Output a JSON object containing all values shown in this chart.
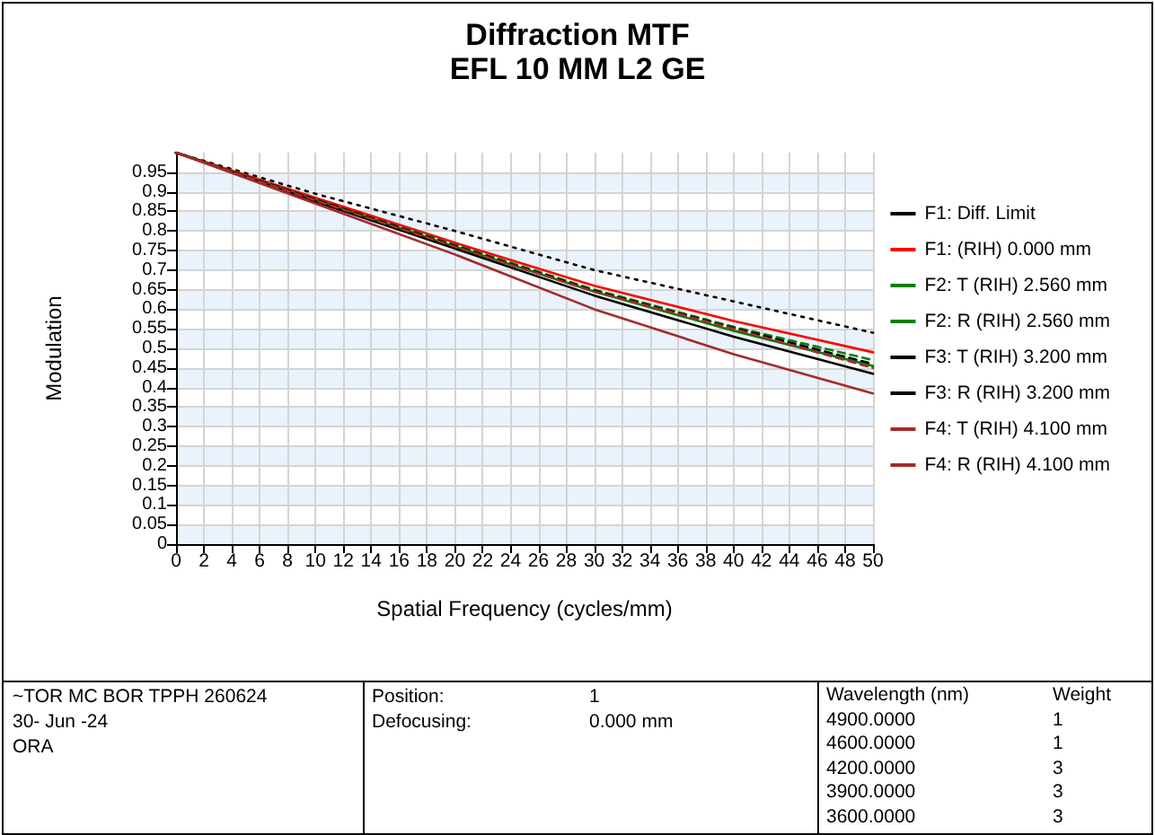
{
  "chart_data": {
    "type": "line",
    "title": "Diffraction MTF",
    "subtitle": "EFL 10 MM L2 GE",
    "xlabel": "Spatial Frequency (cycles/mm)",
    "ylabel": "Modulation",
    "x": [
      0,
      10,
      20,
      30,
      40,
      50
    ],
    "series": [
      {
        "name": "F1: Diff. Limit",
        "color": "#000000",
        "line_style": "dotted",
        "values": [
          1,
          0.895,
          0.8,
          0.7,
          0.62,
          0.54
        ]
      },
      {
        "name": "F1: (RIH) 0.000 mm",
        "color": "#ff0000",
        "line_style": "solid",
        "values": [
          1,
          0.885,
          0.77,
          0.66,
          0.57,
          0.49
        ]
      },
      {
        "name": "F2: T (RIH) 2.560 mm",
        "color": "#008000",
        "line_style": "solid",
        "values": [
          1,
          0.88,
          0.76,
          0.645,
          0.545,
          0.455
        ]
      },
      {
        "name": "F2: R (RIH) 2.560 mm",
        "color": "#008000",
        "line_style": "dashed",
        "values": [
          1,
          0.88,
          0.765,
          0.65,
          0.555,
          0.47
        ]
      },
      {
        "name": "F3: T (RIH) 3.200 mm",
        "color": "#000000",
        "line_style": "solid",
        "values": [
          1,
          0.875,
          0.755,
          0.635,
          0.53,
          0.435
        ]
      },
      {
        "name": "F3: R (RIH) 3.200 mm",
        "color": "#000000",
        "line_style": "dashed",
        "values": [
          1,
          0.88,
          0.762,
          0.647,
          0.552,
          0.46
        ]
      },
      {
        "name": "F4: T (RIH) 4.100 mm",
        "color": "#a52a2a",
        "line_style": "solid",
        "values": [
          1,
          0.87,
          0.74,
          0.6,
          0.485,
          0.385
        ]
      },
      {
        "name": "F4: R (RIH) 4.100 mm",
        "color": "#a52a2a",
        "line_style": "dashed",
        "values": [
          1,
          0.878,
          0.76,
          0.645,
          0.55,
          0.45
        ]
      }
    ],
    "xlim": [
      0,
      50
    ],
    "xticks": [
      0,
      2,
      4,
      6,
      8,
      10,
      12,
      14,
      16,
      18,
      20,
      22,
      24,
      26,
      28,
      30,
      32,
      34,
      36,
      38,
      40,
      42,
      44,
      46,
      48,
      50
    ],
    "ylim": [
      0,
      1
    ],
    "yticks": [
      0,
      0.05,
      0.1,
      0.15,
      0.2,
      0.25,
      0.3,
      0.35,
      0.4,
      0.45,
      0.5,
      0.55,
      0.6,
      0.65,
      0.7,
      0.75,
      0.8,
      0.85,
      0.9,
      0.95
    ],
    "grid": true,
    "legend": "right",
    "marker": "none",
    "annotations": [
      "~TOR MC BOR TPPH 260624",
      "30- Jun -24",
      "ORA",
      "Position:",
      "1",
      "Defocusing:",
      "0.000 mm",
      "Wavelength (nm)",
      "Weight",
      "4900.0000",
      "1",
      "4600.0000",
      "1",
      "4200.0000",
      "3",
      "3900.0000",
      "3",
      "3600.0000",
      "3"
    ]
  }
}
